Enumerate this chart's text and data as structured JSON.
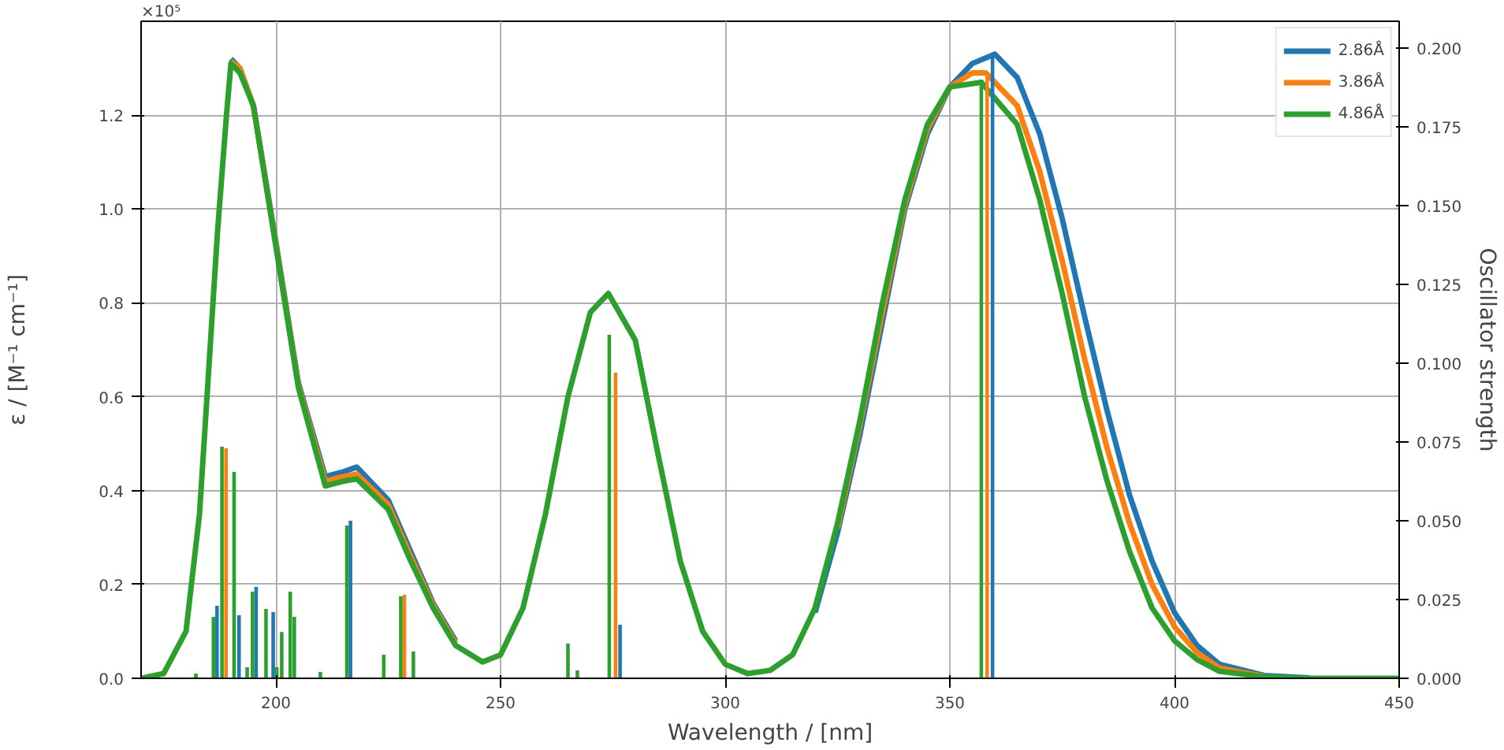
{
  "chart_data": {
    "type": "line",
    "xlabel": "Wavelength / [nm]",
    "ylabel": "ε / [M⁻¹ cm⁻¹]",
    "y2label": "Oscillator strength",
    "annotations": [
      "×10⁵"
    ],
    "xlim": [
      170,
      450
    ],
    "xticks": [
      200,
      250,
      300,
      350,
      400,
      450
    ],
    "ylim": [
      0,
      1.4
    ],
    "yticks": [
      {
        "value": 0,
        "label": "0.0"
      },
      {
        "value": 0.2,
        "label": "0.2"
      },
      {
        "value": 0.4,
        "label": "0.4"
      },
      {
        "value": 0.6,
        "label": "0.6"
      },
      {
        "value": 0.8,
        "label": "0.8"
      },
      {
        "value": 1.0,
        "label": "1.0"
      },
      {
        "value": 1.2,
        "label": "1.2"
      }
    ],
    "y2lim": [
      0,
      0.2085
    ],
    "y2ticks": [
      {
        "value": 0,
        "label": "0.000"
      },
      {
        "value": 0.025,
        "label": "0.025"
      },
      {
        "value": 0.05,
        "label": "0.050"
      },
      {
        "value": 0.075,
        "label": "0.075"
      },
      {
        "value": 0.1,
        "label": "0.100"
      },
      {
        "value": 0.125,
        "label": "0.125"
      },
      {
        "value": 0.15,
        "label": "0.150"
      },
      {
        "value": 0.175,
        "label": "0.175"
      },
      {
        "value": 0.2,
        "label": "0.200"
      }
    ],
    "grid": true,
    "legend": "top right",
    "line_style": "solid",
    "series": [
      {
        "name": "2.86Å",
        "color": "#1f77b4",
        "x": [
          190,
          192,
          195,
          200,
          205,
          211,
          215,
          218,
          225,
          230,
          235,
          240,
          246,
          250,
          255,
          260,
          265,
          270,
          274,
          280,
          285,
          290,
          295,
          300,
          305,
          310,
          315,
          320,
          325,
          330,
          335,
          340,
          345,
          350,
          355,
          360,
          365,
          370,
          375,
          380,
          385,
          390,
          395,
          400,
          405,
          410,
          420,
          430
        ],
        "values": [
          1.32,
          1.3,
          1.22,
          0.93,
          0.63,
          0.43,
          0.44,
          0.45,
          0.38,
          0.27,
          0.16,
          0.08,
          null,
          null,
          null,
          null,
          null,
          null,
          null,
          null,
          null,
          null,
          null,
          null,
          null,
          null,
          null,
          0.14,
          0.31,
          0.52,
          0.76,
          1.0,
          1.16,
          1.26,
          1.31,
          1.33,
          1.28,
          1.16,
          0.98,
          0.77,
          0.57,
          0.39,
          0.25,
          0.14,
          0.07,
          0.03,
          0.006,
          0.001
        ]
      },
      {
        "name": "3.86Å",
        "color": "#ff7f0e",
        "x": [
          190,
          192,
          195,
          200,
          205,
          211,
          215,
          218,
          225,
          230,
          235,
          240,
          246,
          250,
          255,
          260,
          265,
          270,
          274,
          280,
          285,
          290,
          295,
          300,
          305,
          310,
          315,
          320,
          325,
          330,
          335,
          340,
          345,
          350,
          355,
          358,
          365,
          370,
          375,
          380,
          385,
          390,
          395,
          400,
          405,
          410,
          420
        ],
        "values": [
          1.315,
          1.3,
          1.22,
          0.925,
          0.625,
          0.42,
          0.43,
          0.435,
          0.37,
          0.26,
          0.155,
          0.075,
          null,
          null,
          null,
          null,
          null,
          null,
          null,
          null,
          null,
          null,
          null,
          null,
          null,
          null,
          null,
          null,
          0.32,
          0.54,
          0.78,
          1.01,
          1.17,
          1.26,
          1.29,
          1.29,
          1.22,
          1.08,
          0.89,
          0.68,
          0.49,
          0.33,
          0.2,
          0.11,
          0.055,
          0.022,
          0.004
        ]
      },
      {
        "name": "4.86Å",
        "color": "#2ca02c",
        "x": [
          170,
          175,
          180,
          183,
          185,
          187,
          189,
          190,
          192,
          195,
          200,
          205,
          211,
          215,
          218,
          225,
          230,
          235,
          240,
          246,
          250,
          255,
          260,
          265,
          270,
          274,
          280,
          285,
          290,
          295,
          300,
          305,
          310,
          315,
          320,
          325,
          330,
          335,
          340,
          345,
          350,
          357,
          365,
          370,
          375,
          380,
          385,
          390,
          395,
          400,
          405,
          410,
          420,
          430,
          450
        ],
        "values": [
          0.0,
          0.01,
          0.1,
          0.35,
          0.65,
          0.95,
          1.2,
          1.31,
          1.29,
          1.22,
          0.92,
          0.62,
          0.41,
          0.42,
          0.425,
          0.36,
          0.25,
          0.15,
          0.07,
          0.035,
          0.05,
          0.15,
          0.35,
          0.6,
          0.78,
          0.82,
          0.72,
          0.48,
          0.25,
          0.1,
          0.03,
          0.01,
          0.017,
          0.05,
          0.15,
          0.33,
          0.55,
          0.8,
          1.02,
          1.18,
          1.26,
          1.27,
          1.18,
          1.02,
          0.82,
          0.6,
          0.42,
          0.27,
          0.15,
          0.08,
          0.04,
          0.015,
          0.003,
          0.0,
          0.0
        ]
      },
      {
        "color": "#1f77b4",
        "type": "bar",
        "axis": "y2",
        "x": [
          186.9,
          191.8,
          195.6,
          199.4,
          216.6,
          276.6,
          359.5
        ],
        "values": [
          0.023,
          0.02,
          0.029,
          0.021,
          0.05,
          0.017,
          0.1985
        ]
      },
      {
        "color": "#ff7f0e",
        "type": "bar",
        "axis": "y2",
        "x": [
          188.9,
          228.6,
          275.6,
          358.3
        ],
        "values": [
          0.073,
          0.0265,
          0.097,
          0.192
        ]
      },
      {
        "color": "#2ca02c",
        "type": "bar",
        "axis": "y2",
        "x": [
          182.2,
          186.1,
          188.0,
          190.7,
          193.6,
          194.8,
          197.8,
          200.2,
          201.3,
          203.2,
          204.1,
          209.9,
          215.8,
          224,
          227.8,
          230.6,
          265,
          267.1,
          274.2,
          357
        ],
        "values": [
          0.0015,
          0.0195,
          0.0735,
          0.0655,
          0.0035,
          0.0275,
          0.022,
          0.0035,
          0.0147,
          0.0275,
          0.0195,
          0.002,
          0.0485,
          0.0075,
          0.026,
          0.0085,
          0.011,
          0.0025,
          0.109,
          0.19
        ]
      }
    ]
  }
}
